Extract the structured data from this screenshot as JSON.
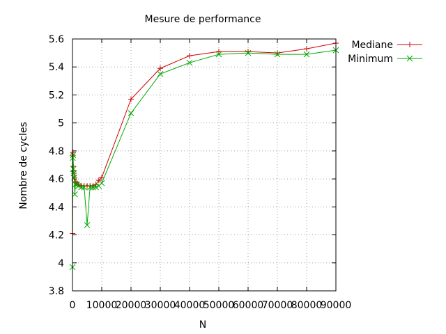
{
  "chart_data": {
    "type": "line",
    "title": "Mesure de performance",
    "xlabel": "N",
    "ylabel": "Nombre de cycles",
    "xlim": [
      0,
      90000
    ],
    "ylim": [
      3.8,
      5.6
    ],
    "x_ticks": [
      0,
      10000,
      20000,
      30000,
      40000,
      50000,
      60000,
      70000,
      80000,
      90000
    ],
    "x_tick_labels": [
      "0",
      "10000",
      "20000",
      "30000",
      "40000",
      "50000",
      "60000",
      "70000",
      "80000",
      "90000"
    ],
    "y_ticks": [
      3.8,
      4,
      4.2,
      4.4,
      4.6,
      4.8,
      5,
      5.2,
      5.4,
      5.6
    ],
    "y_tick_labels": [
      "3.8",
      "4",
      "4.2",
      "4.4",
      "4.6",
      "4.8",
      "5",
      "5.2",
      "5.4",
      "5.6"
    ],
    "grid": true,
    "legend_position": "outside-top-right",
    "series": [
      {
        "name": "Mediane",
        "color": "#cc0000",
        "marker": "plus",
        "points": [
          [
            10,
            4.21
          ],
          [
            100,
            4.77
          ],
          [
            200,
            4.79
          ],
          [
            300,
            4.69
          ],
          [
            400,
            4.66
          ],
          [
            500,
            4.64
          ],
          [
            700,
            4.61
          ],
          [
            1000,
            4.58
          ],
          [
            1500,
            4.57
          ],
          [
            2000,
            4.56
          ],
          [
            3000,
            4.55
          ],
          [
            4000,
            4.55
          ],
          [
            5000,
            4.55
          ],
          [
            6000,
            4.55
          ],
          [
            7000,
            4.55
          ],
          [
            8000,
            4.56
          ],
          [
            9000,
            4.59
          ],
          [
            10000,
            4.61
          ],
          [
            20000,
            5.17
          ],
          [
            30000,
            5.39
          ],
          [
            40000,
            5.48
          ],
          [
            50000,
            5.51
          ],
          [
            60000,
            5.51
          ],
          [
            70000,
            5.5
          ],
          [
            80000,
            5.53
          ],
          [
            90000,
            5.57
          ]
        ]
      },
      {
        "name": "Minimum",
        "color": "#00aa00",
        "marker": "x",
        "points": [
          [
            10,
            3.97
          ],
          [
            100,
            4.75
          ],
          [
            200,
            4.77
          ],
          [
            300,
            4.67
          ],
          [
            400,
            4.64
          ],
          [
            600,
            4.61
          ],
          [
            800,
            4.49
          ],
          [
            1000,
            4.56
          ],
          [
            1500,
            4.56
          ],
          [
            2000,
            4.55
          ],
          [
            3000,
            4.54
          ],
          [
            4000,
            4.54
          ],
          [
            5000,
            4.27
          ],
          [
            6000,
            4.54
          ],
          [
            7000,
            4.54
          ],
          [
            8000,
            4.54
          ],
          [
            9000,
            4.55
          ],
          [
            10000,
            4.57
          ],
          [
            20000,
            5.07
          ],
          [
            30000,
            5.35
          ],
          [
            40000,
            5.43
          ],
          [
            50000,
            5.49
          ],
          [
            60000,
            5.5
          ],
          [
            70000,
            5.49
          ],
          [
            80000,
            5.49
          ],
          [
            90000,
            5.52
          ]
        ]
      }
    ]
  }
}
